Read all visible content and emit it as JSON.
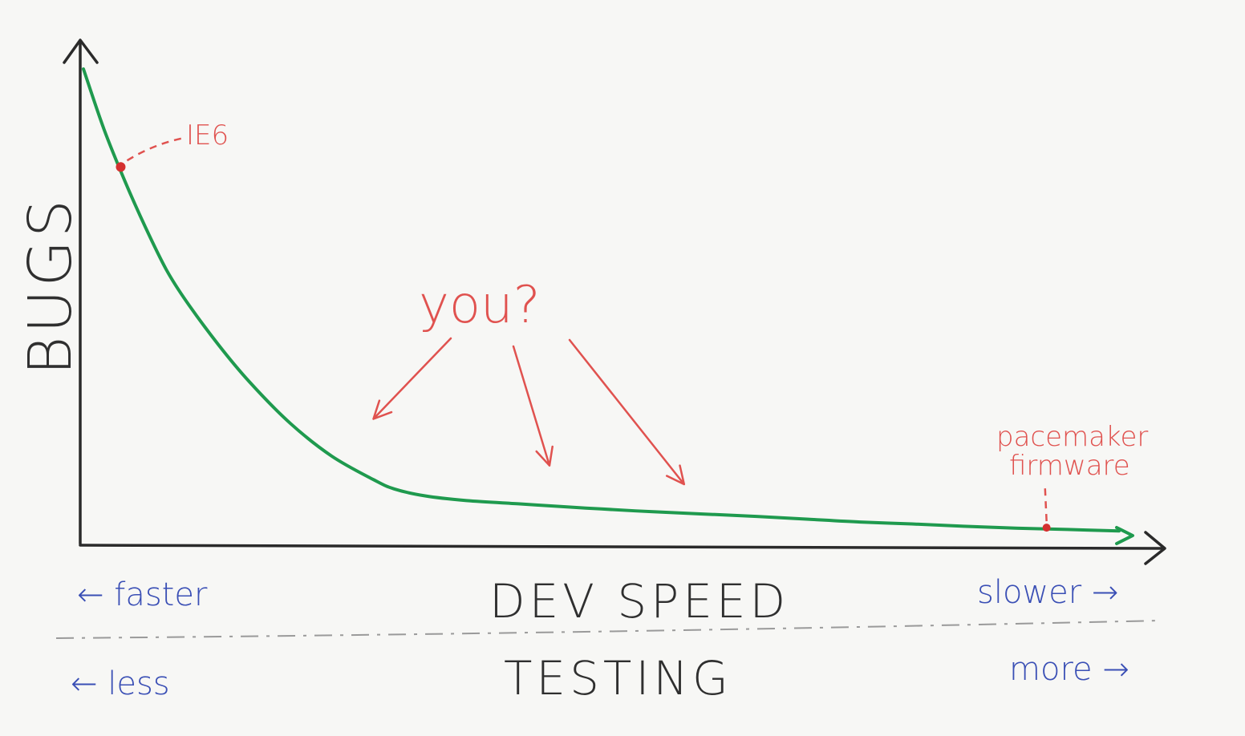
{
  "chart_data": {
    "type": "line",
    "ylabel": "BUGS",
    "xlabel": "DEV SPEED",
    "xlabel2": "TESTING",
    "x_left": "← faster",
    "x_right": "slower →",
    "x2_left": "← less",
    "x2_right": "more →",
    "xlim": [
      0,
      1
    ],
    "ylim": [
      0,
      1
    ],
    "grid": false,
    "series": [
      {
        "x": [
          0,
          0.02,
          0.04,
          0.06,
          0.08,
          0.1,
          0.13,
          0.16,
          0.2,
          0.24,
          0.28,
          0.3,
          0.33,
          0.37,
          0.42,
          0.47,
          0.5,
          0.55,
          0.6,
          0.65,
          0.7,
          0.75,
          0.8,
          0.85,
          0.9,
          0.95,
          1.0
        ],
        "y": [
          1.0,
          0.87,
          0.76,
          0.66,
          0.57,
          0.5,
          0.41,
          0.33,
          0.24,
          0.17,
          0.12,
          0.1,
          0.085,
          0.075,
          0.068,
          0.061,
          0.057,
          0.051,
          0.046,
          0.041,
          0.035,
          0.029,
          0.025,
          0.02,
          0.016,
          0.013,
          0.01
        ]
      }
    ],
    "annotations": {
      "ie6": {
        "label": "IE6",
        "x": 0.036,
        "y": 0.79
      },
      "you": {
        "label": "you?",
        "targets": [
          {
            "x": 0.28,
            "y": 0.25
          },
          {
            "x": 0.45,
            "y": 0.15
          },
          {
            "x": 0.58,
            "y": 0.11
          }
        ]
      },
      "pacemaker": {
        "label_line1": "pacemaker",
        "label_line2": "firmware",
        "x": 0.93,
        "y": 0.017
      }
    }
  }
}
